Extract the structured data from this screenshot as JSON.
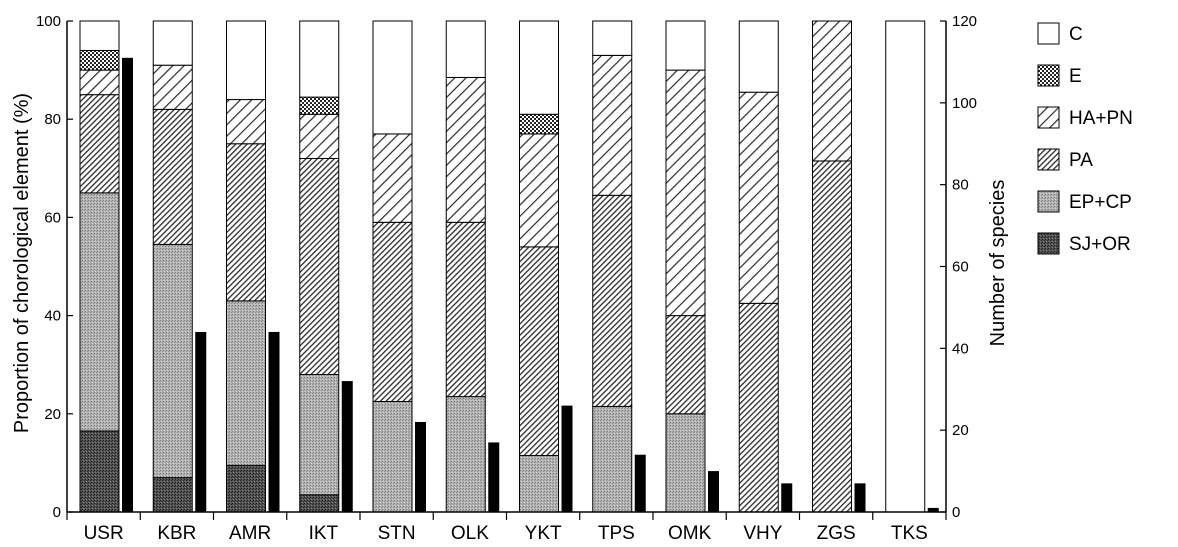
{
  "chart_data": {
    "type": "bar",
    "stacked": true,
    "categories": [
      "USR",
      "KBR",
      "AMR",
      "IKT",
      "STN",
      "OLK",
      "YKT",
      "TPS",
      "OMK",
      "VHY",
      "ZGS",
      "TKS"
    ],
    "ylabel": "Proportion of chorological element (%)",
    "y2label": "Number of species",
    "ylim": [
      0,
      100
    ],
    "y2lim": [
      0,
      120
    ],
    "yticks": [
      "0",
      "20",
      "40",
      "60",
      "80",
      "100"
    ],
    "y2ticks": [
      "0",
      "20",
      "40",
      "60",
      "80",
      "100",
      "120"
    ],
    "legend_position": "right",
    "series": [
      {
        "name": "SJ+OR",
        "pattern": "dark-stipple",
        "values": [
          16.5,
          7,
          9.5,
          3.5,
          0,
          0,
          0,
          0,
          0,
          0,
          0,
          0
        ]
      },
      {
        "name": "EP+CP",
        "pattern": "gray-stipple",
        "values": [
          48.5,
          47.5,
          33.5,
          24.5,
          22.5,
          23.5,
          11.5,
          21.5,
          20,
          0,
          0,
          0
        ]
      },
      {
        "name": "PA",
        "pattern": "dense-hatch",
        "values": [
          20,
          27.5,
          32,
          44,
          36.5,
          35.5,
          42.5,
          43,
          20,
          42.5,
          71.5,
          0
        ]
      },
      {
        "name": "HA+PN",
        "pattern": "sparse-hatch",
        "values": [
          5,
          9,
          9,
          9,
          18,
          29.5,
          23,
          28.5,
          50,
          43,
          28.5,
          0
        ]
      },
      {
        "name": "E",
        "pattern": "checker",
        "values": [
          4,
          0,
          0,
          3.5,
          0,
          0,
          4,
          0,
          0,
          0,
          0,
          0
        ]
      },
      {
        "name": "C",
        "pattern": "white",
        "values": [
          6,
          9,
          16,
          15.5,
          23,
          11.5,
          19,
          7,
          10,
          14.5,
          0,
          100
        ]
      }
    ],
    "species_count": {
      "values": [
        111,
        44,
        44,
        32,
        22,
        17,
        26,
        14,
        10,
        7,
        7,
        1
      ]
    },
    "colors": {
      "stipple_dark": "#3a3a3a",
      "stipple_gray": "#a8a8a8",
      "hatch": "#2a2a2a",
      "species_bar": "#000000",
      "frame": "#000000"
    }
  }
}
